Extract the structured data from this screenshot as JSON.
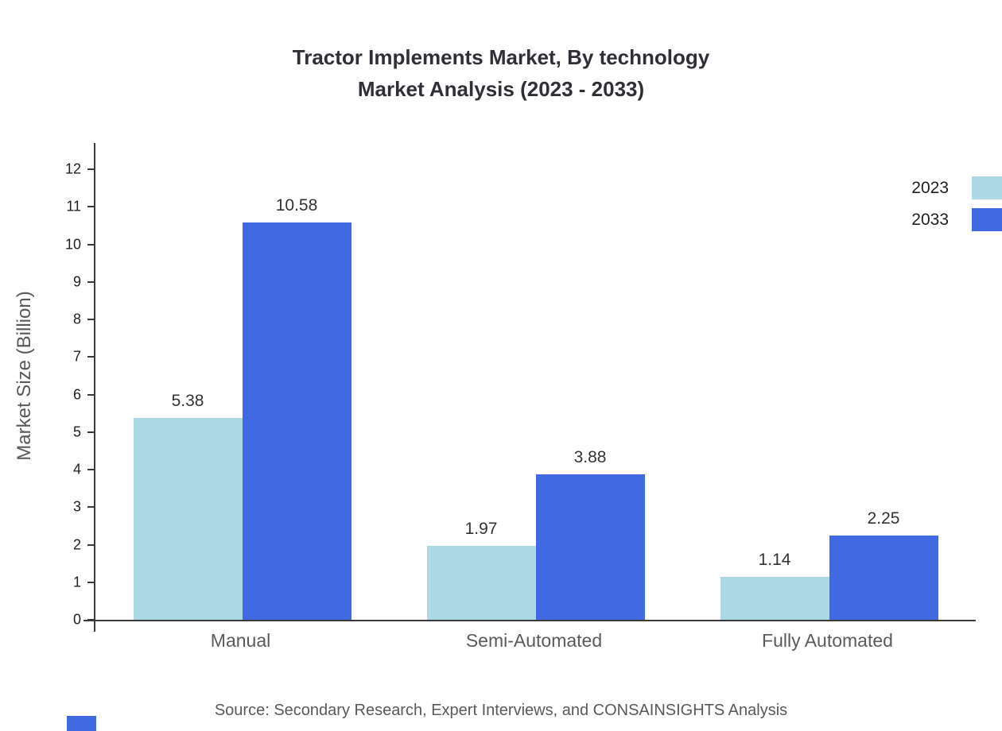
{
  "title": {
    "line1": "Tractor Implements Market, By technology",
    "line2": "Market Analysis (2023 - 2033)"
  },
  "source": "Source: Secondary Research, Expert Interviews, and CONSAINSIGHTS Analysis",
  "chart_data": {
    "type": "bar",
    "title": "Tractor Implements Market, By technology Market Analysis (2023 - 2033)",
    "categories": [
      "Manual",
      "Semi-Automated",
      "Fully Automated"
    ],
    "series": [
      {
        "name": "2023",
        "color": "#add8e6",
        "values": [
          5.38,
          1.97,
          1.14
        ]
      },
      {
        "name": "2033",
        "color": "#4169e1",
        "values": [
          10.58,
          3.88,
          2.25
        ]
      }
    ],
    "xlabel": "",
    "ylabel": "Market Size (Billion)",
    "ylim": [
      0,
      12.7
    ],
    "yticks": [
      0,
      1,
      2,
      3,
      4,
      5,
      6,
      7,
      8,
      9,
      10,
      11,
      12
    ],
    "grid": false,
    "legend_position": "top-right",
    "value_labels": true,
    "axis_color": "#3a3a3a"
  }
}
